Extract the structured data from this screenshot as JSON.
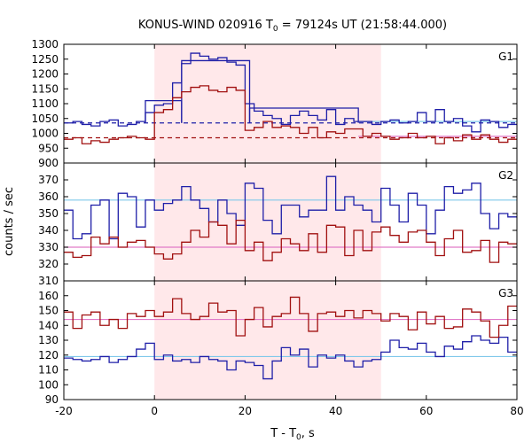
{
  "chart_data": {
    "type": "line",
    "title": "KONUS-WIND 020916 T",
    "title_sub": "0",
    "title_rest": " = 79124s UT (21:58:44.000)",
    "xlabel_main": "T - T",
    "xlabel_sub": "0",
    "xlabel_rest": ", s",
    "ylabel": "counts / sec",
    "xlim": [
      -20,
      80
    ],
    "x_ticks": [
      -20,
      0,
      20,
      40,
      60,
      80
    ],
    "x_tick_labels": [
      "-20",
      "0",
      "20",
      "40",
      "60",
      "80"
    ],
    "shade": [
      0,
      50
    ],
    "colors": {
      "blue": "#1f1fa8",
      "red": "#a11010",
      "lightblue": "#7fc8ea",
      "pink": "#e07ac8",
      "shade": "#ffe8ea"
    },
    "panels": [
      {
        "name": "G1",
        "ylim": [
          900,
          1300
        ],
        "y_ticks": [
          900,
          950,
          1000,
          1050,
          1100,
          1150,
          1200,
          1250,
          1300
        ],
        "y_tick_labels": [
          "900",
          "950",
          "1000",
          "1050",
          "1100",
          "1150",
          "1200",
          "1250",
          "1300"
        ],
        "step_bins": [
          -20,
          -18,
          -16,
          -14,
          -12,
          -10,
          -8,
          -6,
          -4,
          -2,
          0,
          2,
          4,
          6,
          8,
          10,
          12,
          14,
          16,
          18,
          20,
          22,
          24,
          26,
          28,
          30,
          32,
          34,
          36,
          38,
          40,
          42,
          44,
          46,
          48,
          50,
          52,
          54,
          56,
          58,
          60,
          62,
          64,
          66,
          68,
          70,
          72,
          74,
          76,
          78,
          80
        ],
        "blue": [
          1035,
          1040,
          1030,
          1025,
          1040,
          1045,
          1025,
          1030,
          1040,
          1070,
          1095,
          1100,
          1170,
          1235,
          1270,
          1260,
          1250,
          1255,
          1240,
          1230,
          1100,
          1075,
          1060,
          1050,
          1030,
          1060,
          1075,
          1060,
          1045,
          1080,
          1030,
          1050,
          1040,
          1040,
          1030,
          1040,
          1045,
          1035,
          1040,
          1070,
          1040,
          1080,
          1040,
          1050,
          1025,
          1005,
          1045,
          1040,
          1020,
          1030
        ],
        "red": [
          980,
          985,
          965,
          975,
          970,
          980,
          985,
          990,
          985,
          980,
          1070,
          1080,
          1120,
          1140,
          1155,
          1160,
          1145,
          1140,
          1155,
          1145,
          1010,
          1020,
          1040,
          1020,
          1025,
          1020,
          1000,
          1020,
          985,
          1005,
          1000,
          1015,
          1015,
          990,
          1000,
          990,
          980,
          985,
          1000,
          985,
          990,
          965,
          985,
          975,
          995,
          980,
          995,
          980,
          970,
          980
        ],
        "fit_blue": {
          "segments": [
            [
              -2,
              6,
              1110
            ],
            [
              6,
              21,
              1245
            ],
            [
              21,
              45,
              1085
            ]
          ],
          "base": 1035
        },
        "fit_red": {
          "segments": [],
          "base": 985
        }
      },
      {
        "name": "G2",
        "ylim": [
          310,
          380
        ],
        "y_ticks": [
          310,
          320,
          330,
          340,
          350,
          360,
          370
        ],
        "y_tick_labels": [
          "310",
          "320",
          "330",
          "340",
          "350",
          "360",
          "370"
        ],
        "step_bins": [
          -20,
          -18,
          -16,
          -14,
          -12,
          -10,
          -8,
          -6,
          -4,
          -2,
          0,
          2,
          4,
          6,
          8,
          10,
          12,
          14,
          16,
          18,
          20,
          22,
          24,
          26,
          28,
          30,
          32,
          34,
          36,
          38,
          40,
          42,
          44,
          46,
          48,
          50,
          52,
          54,
          56,
          58,
          60,
          62,
          64,
          66,
          68,
          70,
          72,
          74,
          76,
          78,
          80
        ],
        "blue": [
          352,
          335,
          338,
          355,
          358,
          335,
          362,
          360,
          342,
          358,
          352,
          356,
          358,
          366,
          358,
          353,
          345,
          358,
          350,
          343,
          368,
          365,
          346,
          338,
          355,
          355,
          348,
          352,
          352,
          372,
          352,
          360,
          355,
          352,
          345,
          365,
          355,
          345,
          362,
          355,
          338,
          352,
          366,
          362,
          364,
          368,
          350,
          341,
          350,
          348
        ],
        "red": [
          327,
          324,
          325,
          336,
          332,
          336,
          330,
          333,
          334,
          330,
          326,
          323,
          326,
          333,
          340,
          336,
          345,
          343,
          332,
          346,
          328,
          333,
          322,
          327,
          335,
          332,
          328,
          338,
          327,
          343,
          342,
          325,
          340,
          328,
          339,
          342,
          337,
          333,
          339,
          340,
          333,
          325,
          335,
          340,
          327,
          328,
          334,
          321,
          333,
          332
        ],
        "fit_blue": {
          "segments": [],
          "base": 358
        },
        "fit_red": {
          "segments": [],
          "base": 330
        }
      },
      {
        "name": "G3",
        "ylim": [
          90,
          170
        ],
        "y_ticks": [
          90,
          100,
          110,
          120,
          130,
          140,
          150,
          160
        ],
        "y_tick_labels": [
          "90",
          "100",
          "110",
          "120",
          "130",
          "140",
          "150",
          "160"
        ],
        "step_bins": [
          -20,
          -18,
          -16,
          -14,
          -12,
          -10,
          -8,
          -6,
          -4,
          -2,
          0,
          2,
          4,
          6,
          8,
          10,
          12,
          14,
          16,
          18,
          20,
          22,
          24,
          26,
          28,
          30,
          32,
          34,
          36,
          38,
          40,
          42,
          44,
          46,
          48,
          50,
          52,
          54,
          56,
          58,
          60,
          62,
          64,
          66,
          68,
          70,
          72,
          74,
          76,
          78,
          80
        ],
        "blue": [
          118,
          117,
          116,
          117,
          119,
          115,
          117,
          119,
          124,
          128,
          117,
          120,
          116,
          117,
          115,
          119,
          117,
          116,
          110,
          116,
          115,
          113,
          104,
          116,
          125,
          120,
          124,
          112,
          120,
          118,
          120,
          116,
          112,
          116,
          117,
          122,
          130,
          125,
          124,
          128,
          122,
          119,
          126,
          124,
          129,
          133,
          130,
          128,
          132,
          122
        ],
        "red": [
          149,
          138,
          147,
          149,
          140,
          144,
          138,
          148,
          146,
          150,
          146,
          149,
          158,
          148,
          144,
          146,
          155,
          149,
          150,
          133,
          144,
          152,
          139,
          146,
          148,
          159,
          148,
          136,
          148,
          149,
          146,
          150,
          145,
          150,
          148,
          143,
          148,
          146,
          137,
          149,
          141,
          146,
          138,
          139,
          151,
          149,
          143,
          132,
          140,
          153
        ],
        "fit_blue": {
          "segments": [],
          "base": 119
        },
        "fit_red": {
          "segments": [],
          "base": 144
        }
      }
    ]
  }
}
